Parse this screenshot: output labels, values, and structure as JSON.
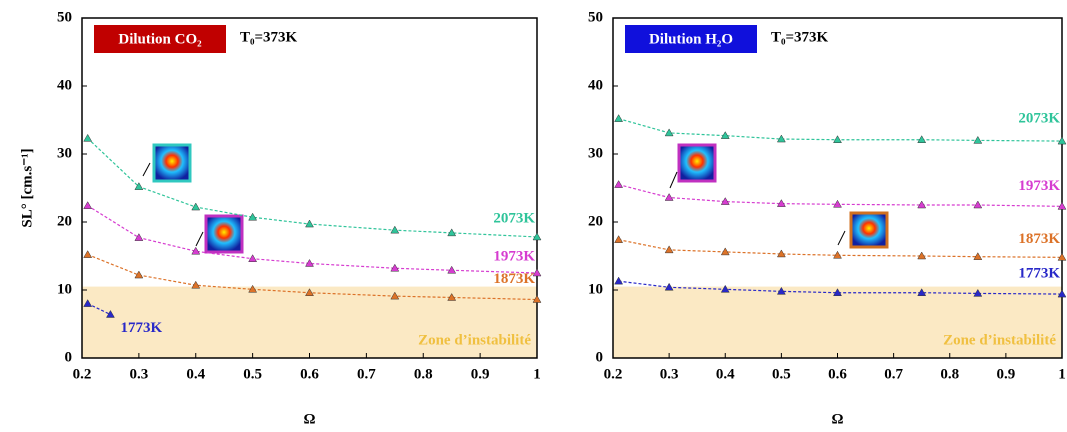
{
  "chart_data": [
    {
      "type": "line",
      "box_label": "Dilution CO₂",
      "box_color": "#c00000",
      "subtitle": "T₀=373K",
      "ylabel": "SL° [cm.s⁻¹]",
      "xlabel": "Ω",
      "xlim": [
        0.2,
        1
      ],
      "xticks": [
        0.2,
        0.3,
        0.4,
        0.5,
        0.6,
        0.7,
        0.8,
        0.9,
        1
      ],
      "ylim": [
        0,
        50
      ],
      "yticks": [
        0,
        10,
        20,
        30,
        40,
        50
      ],
      "zone": {
        "label": "Zone d’instabilité",
        "ymax": 10.5,
        "color": "#fbe9c4"
      },
      "series": [
        {
          "name": "2073K",
          "color": "#2fc49a",
          "x": [
            0.21,
            0.3,
            0.4,
            0.5,
            0.6,
            0.75,
            0.85,
            1
          ],
          "values": [
            32.3,
            25.2,
            22.2,
            20.7,
            19.7,
            18.8,
            18.4,
            17.8
          ]
        },
        {
          "name": "1973K",
          "color": "#d63cd0",
          "x": [
            0.21,
            0.3,
            0.4,
            0.5,
            0.6,
            0.75,
            0.85,
            1
          ],
          "values": [
            22.4,
            17.7,
            15.7,
            14.6,
            13.9,
            13.2,
            12.9,
            12.5
          ]
        },
        {
          "name": "1873K",
          "color": "#dc7228",
          "x": [
            0.21,
            0.3,
            0.4,
            0.5,
            0.6,
            0.75,
            0.85,
            1
          ],
          "values": [
            15.2,
            12.2,
            10.7,
            10.1,
            9.6,
            9.1,
            8.9,
            8.6
          ]
        },
        {
          "name": "1773K",
          "color": "#2828c8",
          "x": [
            0.21,
            0.25
          ],
          "values": [
            8.0,
            6.4
          ]
        }
      ]
    },
    {
      "type": "line",
      "box_label": "Dilution H₂O",
      "box_color": "#1010dc",
      "subtitle": "T₀=373K",
      "xlabel": "Ω",
      "xlim": [
        0.2,
        1
      ],
      "xticks": [
        0.2,
        0.3,
        0.4,
        0.5,
        0.6,
        0.7,
        0.8,
        0.9,
        1
      ],
      "ylim": [
        0,
        50
      ],
      "yticks": [
        0,
        10,
        20,
        30,
        40,
        50
      ],
      "zone": {
        "label": "Zone d’instabilité",
        "ymax": 10.5,
        "color": "#fbe9c4"
      },
      "series": [
        {
          "name": "2073K",
          "color": "#2fc49a",
          "x": [
            0.21,
            0.3,
            0.4,
            0.5,
            0.6,
            0.75,
            0.85,
            1
          ],
          "values": [
            35.2,
            33.1,
            32.7,
            32.2,
            32.1,
            32.1,
            32.0,
            31.9
          ]
        },
        {
          "name": "1973K",
          "color": "#d63cd0",
          "x": [
            0.21,
            0.3,
            0.4,
            0.5,
            0.6,
            0.75,
            0.85,
            1
          ],
          "values": [
            25.5,
            23.6,
            23.0,
            22.7,
            22.6,
            22.5,
            22.5,
            22.3
          ]
        },
        {
          "name": "1873K",
          "color": "#dc7228",
          "x": [
            0.21,
            0.3,
            0.4,
            0.5,
            0.6,
            0.75,
            0.85,
            1
          ],
          "values": [
            17.4,
            15.9,
            15.6,
            15.3,
            15.1,
            15.0,
            14.9,
            14.8
          ]
        },
        {
          "name": "1773K",
          "color": "#2828c8",
          "x": [
            0.21,
            0.3,
            0.4,
            0.5,
            0.6,
            0.75,
            0.85,
            1
          ],
          "values": [
            11.3,
            10.4,
            10.1,
            9.8,
            9.6,
            9.6,
            9.5,
            9.4
          ]
        }
      ]
    }
  ]
}
